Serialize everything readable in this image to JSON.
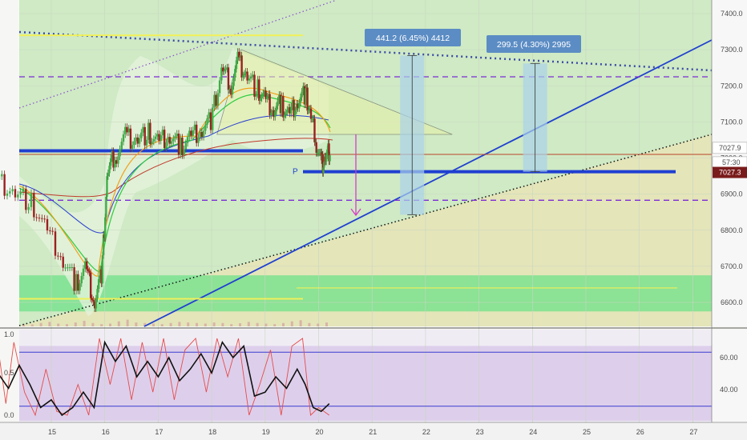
{
  "chart_data": [
    {
      "type": "line",
      "name": "price-chart",
      "x_ticks": [
        "15",
        "16",
        "17",
        "18",
        "19",
        "20",
        "21",
        "22",
        "23",
        "24",
        "25",
        "26",
        "27"
      ],
      "y_ticks": [
        6600,
        6700,
        6800,
        6900,
        7000,
        7100,
        7200,
        7300,
        7400
      ],
      "ylim": [
        6530,
        7460
      ],
      "price_labels": {
        "last": "7027.9",
        "countdown": "57:30",
        "current": "7027.3"
      },
      "levels": {
        "resistance_dashed": 7225,
        "support_dashed": 6883,
        "thick_blue_left": 7020,
        "thick_blue_right": 6962,
        "red_horizontal": 7010,
        "yellow_top": 7340,
        "yellow_low_left": 6610,
        "yellow_low_right": 6640,
        "green_zone": [
          6575,
          6675
        ]
      },
      "annotations": [
        {
          "text": "441.2 (6.45%) 4412",
          "x_day": 21.75,
          "from": 6843,
          "to": 7284
        },
        {
          "text": "299.5 (4.30%) 2995",
          "x_day": 24.05,
          "from": 6962,
          "to": 7262
        }
      ],
      "pivot_label": "P",
      "close_path": [
        [
          14.0,
          6940
        ],
        [
          14.3,
          6905
        ],
        [
          14.6,
          6880
        ],
        [
          14.9,
          6800
        ],
        [
          15.2,
          6720
        ],
        [
          15.45,
          6650
        ],
        [
          15.65,
          6700
        ],
        [
          15.8,
          6600
        ],
        [
          15.95,
          6690
        ],
        [
          16.05,
          6960
        ],
        [
          16.2,
          7010
        ],
        [
          16.4,
          7060
        ],
        [
          16.6,
          7050
        ],
        [
          16.8,
          7070
        ],
        [
          17.0,
          7040
        ],
        [
          17.2,
          7060
        ],
        [
          17.4,
          7030
        ],
        [
          17.6,
          7060
        ],
        [
          17.8,
          7080
        ],
        [
          18.0,
          7110
        ],
        [
          18.2,
          7250
        ],
        [
          18.35,
          7200
        ],
        [
          18.5,
          7270
        ],
        [
          18.65,
          7230
        ],
        [
          18.85,
          7190
        ],
        [
          19.0,
          7160
        ],
        [
          19.15,
          7130
        ],
        [
          19.3,
          7150
        ],
        [
          19.45,
          7120
        ],
        [
          19.6,
          7160
        ],
        [
          19.75,
          7180
        ],
        [
          19.85,
          7120
        ],
        [
          19.95,
          7050
        ],
        [
          20.05,
          6980
        ],
        [
          20.12,
          7000
        ],
        [
          20.22,
          7028
        ]
      ],
      "volume_fractions": [
        0.22,
        0.18,
        0.3,
        0.4,
        0.25,
        0.2,
        0.35,
        0.5,
        0.3,
        0.2,
        0.25,
        0.45,
        0.6,
        0.35,
        0.3,
        0.25,
        0.2,
        0.3,
        0.4,
        0.35,
        0.3,
        0.25,
        0.35,
        0.3,
        0.2,
        0.28,
        0.4,
        0.3,
        0.25,
        0.2,
        0.3,
        0.45,
        0.55,
        0.3,
        0.25,
        0.35
      ]
    },
    {
      "type": "line",
      "name": "stochastic-rsi",
      "y_ticks_left": [
        "1.0",
        "0.5",
        "0.0"
      ],
      "y_ticks_right": [
        "60.00",
        "40.00"
      ],
      "upper_band": 63,
      "lower_band": 37,
      "black_series": [
        [
          14.0,
          0.55
        ],
        [
          14.2,
          0.35
        ],
        [
          14.4,
          0.65
        ],
        [
          14.6,
          0.4
        ],
        [
          14.8,
          0.1
        ],
        [
          15.0,
          0.2
        ],
        [
          15.2,
          0.0
        ],
        [
          15.4,
          0.1
        ],
        [
          15.6,
          0.3
        ],
        [
          15.8,
          0.1
        ],
        [
          16.0,
          0.95
        ],
        [
          16.2,
          0.7
        ],
        [
          16.4,
          0.9
        ],
        [
          16.6,
          0.5
        ],
        [
          16.8,
          0.7
        ],
        [
          17.0,
          0.5
        ],
        [
          17.2,
          0.75
        ],
        [
          17.4,
          0.45
        ],
        [
          17.6,
          0.6
        ],
        [
          17.8,
          0.8
        ],
        [
          18.0,
          0.55
        ],
        [
          18.2,
          0.95
        ],
        [
          18.4,
          0.75
        ],
        [
          18.6,
          0.9
        ],
        [
          18.8,
          0.25
        ],
        [
          19.0,
          0.3
        ],
        [
          19.2,
          0.5
        ],
        [
          19.4,
          0.35
        ],
        [
          19.6,
          0.6
        ],
        [
          19.75,
          0.4
        ],
        [
          19.9,
          0.1
        ],
        [
          20.05,
          0.05
        ],
        [
          20.2,
          0.15
        ]
      ],
      "red_series": [
        [
          14.0,
          0.9
        ],
        [
          14.15,
          0.15
        ],
        [
          14.3,
          0.95
        ],
        [
          14.5,
          0.3
        ],
        [
          14.7,
          0.0
        ],
        [
          14.9,
          0.6
        ],
        [
          15.1,
          0.05
        ],
        [
          15.3,
          0.0
        ],
        [
          15.5,
          0.4
        ],
        [
          15.7,
          0.0
        ],
        [
          15.9,
          1.0
        ],
        [
          16.1,
          0.4
        ],
        [
          16.3,
          1.0
        ],
        [
          16.5,
          0.2
        ],
        [
          16.7,
          0.95
        ],
        [
          16.9,
          0.3
        ],
        [
          17.1,
          1.0
        ],
        [
          17.3,
          0.2
        ],
        [
          17.5,
          0.85
        ],
        [
          17.7,
          1.0
        ],
        [
          17.9,
          0.3
        ],
        [
          18.1,
          1.0
        ],
        [
          18.3,
          0.5
        ],
        [
          18.5,
          1.0
        ],
        [
          18.7,
          0.0
        ],
        [
          18.9,
          0.4
        ],
        [
          19.1,
          0.85
        ],
        [
          19.3,
          0.0
        ],
        [
          19.5,
          0.9
        ],
        [
          19.7,
          1.0
        ],
        [
          19.85,
          0.0
        ],
        [
          20.0,
          0.1
        ],
        [
          20.2,
          0.0
        ]
      ]
    }
  ],
  "colors": {
    "green_zone": "#6fe08a",
    "yellow_area": "#e6e4b8",
    "green_area": "#cfeac4",
    "blue_line": "#1f3fd1",
    "purple_dash": "#7b2bd6",
    "navy_dots": "#3b4aa8",
    "annotation_box": "#5b8cc4",
    "current_price": "#7a1b1b",
    "rsi_bg": "#d8c8e8"
  }
}
